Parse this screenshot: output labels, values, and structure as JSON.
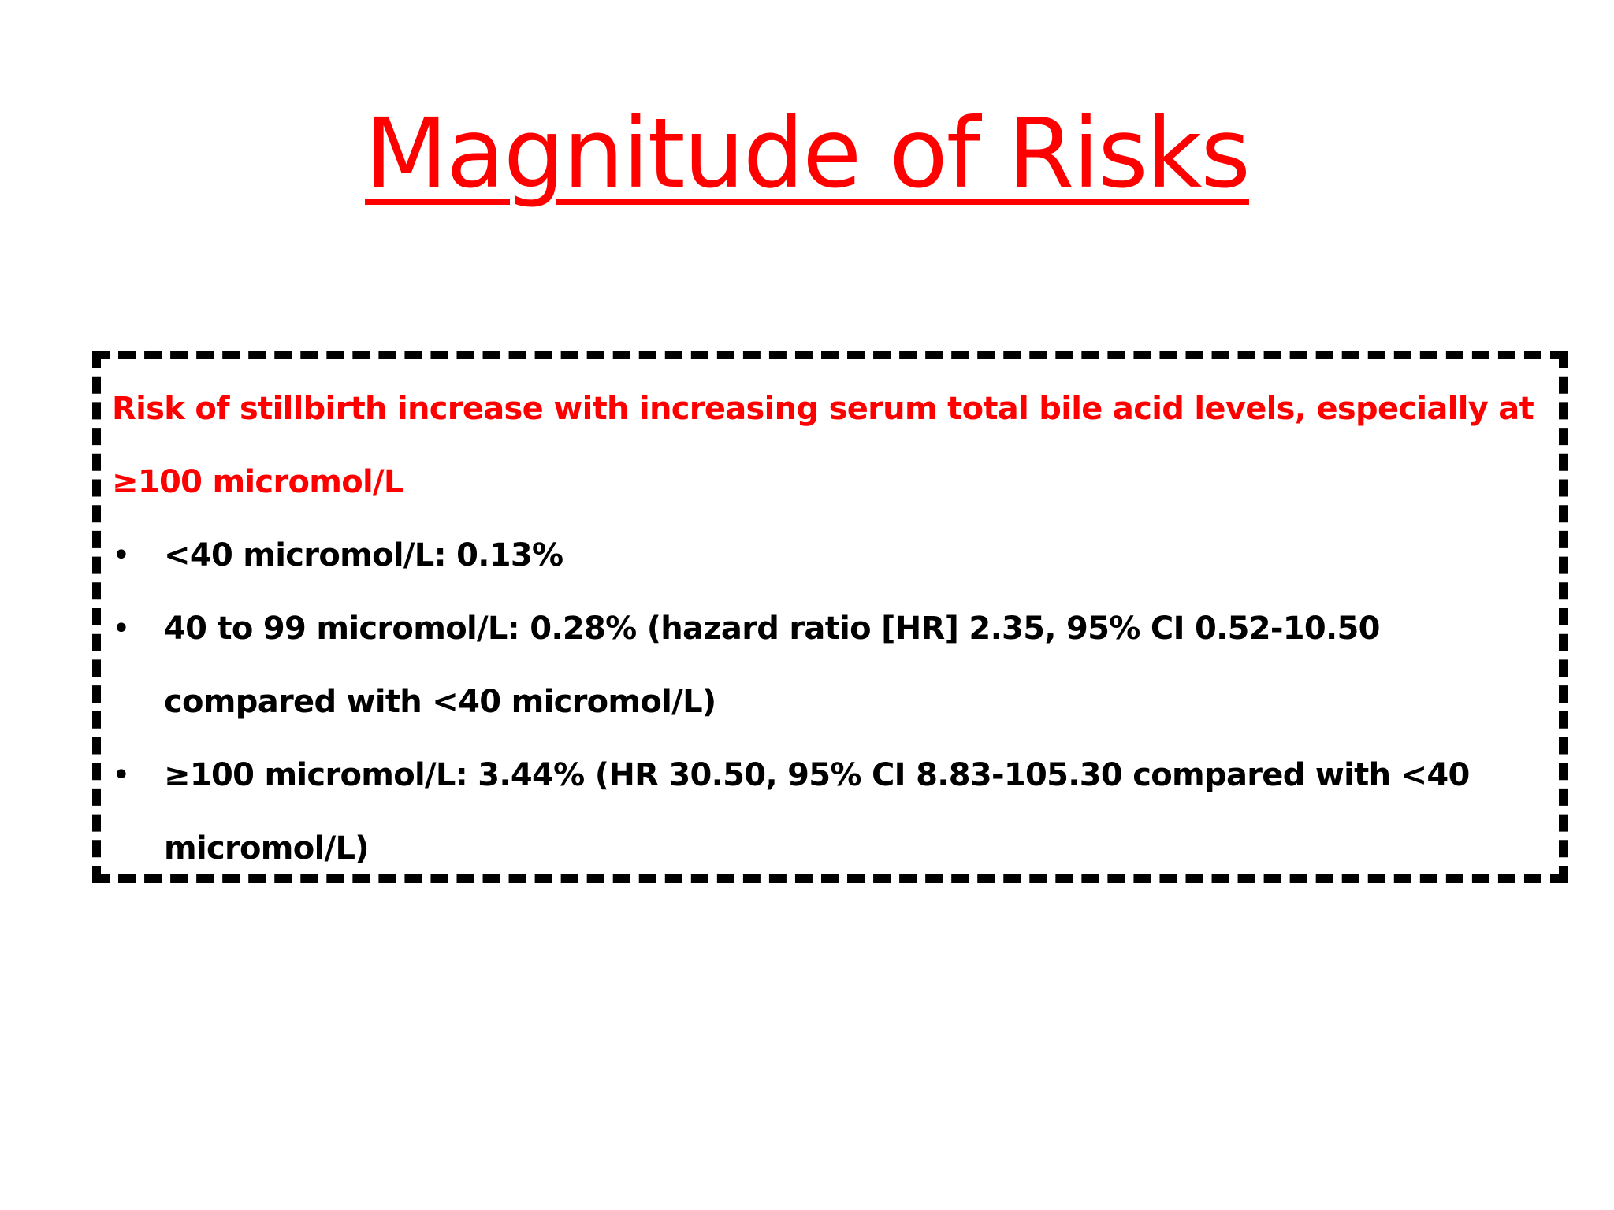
{
  "slide": {
    "title": "Magnitude of Risks",
    "lead": "Risk of stillbirth increase with increasing serum total bile acid levels, especially at ≥100 micromol/L",
    "bullet_glyph": "•",
    "items": [
      {
        "text": "<40 micromol/L: 0.13%"
      },
      {
        "text": "40 to 99 micromol/L: 0.28% (hazard ratio [HR] 2.35, 95% CI 0.52-10.50 compared with <40 micromol/L)"
      },
      {
        "text": "≥100 micromol/L: 3.44% (HR 30.50, 95% CI 8.83-105.30 compared with <40 micromol/L)"
      }
    ],
    "colors": {
      "title": "#ff0000",
      "lead": "#ff0000",
      "body": "#000000",
      "border": "#000000"
    }
  }
}
